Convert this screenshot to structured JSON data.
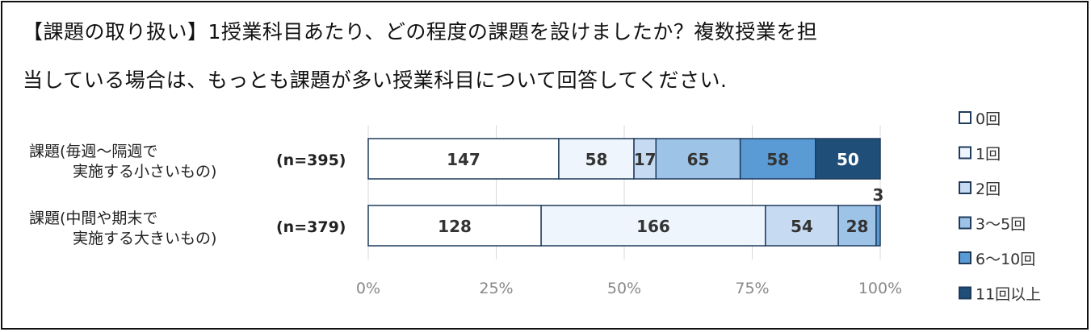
{
  "chart_data": {
    "type": "bar",
    "orientation": "horizontal",
    "stacked": "percent",
    "title_lines": [
      "【課題の取り扱い】1授業科目あたり、どの程度の課題を設けましたか？複数授業を担",
      "当している場合は、もっとも課題が多い授業科目について回答してください."
    ],
    "categories": [
      {
        "lines": [
          "課題(毎週〜隔週で",
          "実施する小さいもの)"
        ],
        "n_label": "(n=395)"
      },
      {
        "lines": [
          "課題(中間や期末で",
          "実施する大きいもの)"
        ],
        "n_label": "(n=379)"
      }
    ],
    "series": [
      {
        "name": "0回",
        "color": "#ffffff",
        "values": [
          147,
          128
        ]
      },
      {
        "name": "1回",
        "color": "#eef5fc",
        "values": [
          58,
          166
        ]
      },
      {
        "name": "2回",
        "color": "#c6daf1",
        "values": [
          17,
          54
        ]
      },
      {
        "name": "3〜5回",
        "color": "#9dc3e6",
        "values": [
          65,
          28
        ]
      },
      {
        "name": "6〜10回",
        "color": "#5b9bd5",
        "values": [
          58,
          3
        ]
      },
      {
        "name": "11回以上",
        "color": "#1f4e79",
        "values": [
          50,
          0
        ]
      }
    ],
    "x_ticks": [
      "0%",
      "25%",
      "50%",
      "75%",
      "100%"
    ],
    "xlim": [
      0,
      100
    ],
    "grid": true,
    "legend_position": "right"
  }
}
